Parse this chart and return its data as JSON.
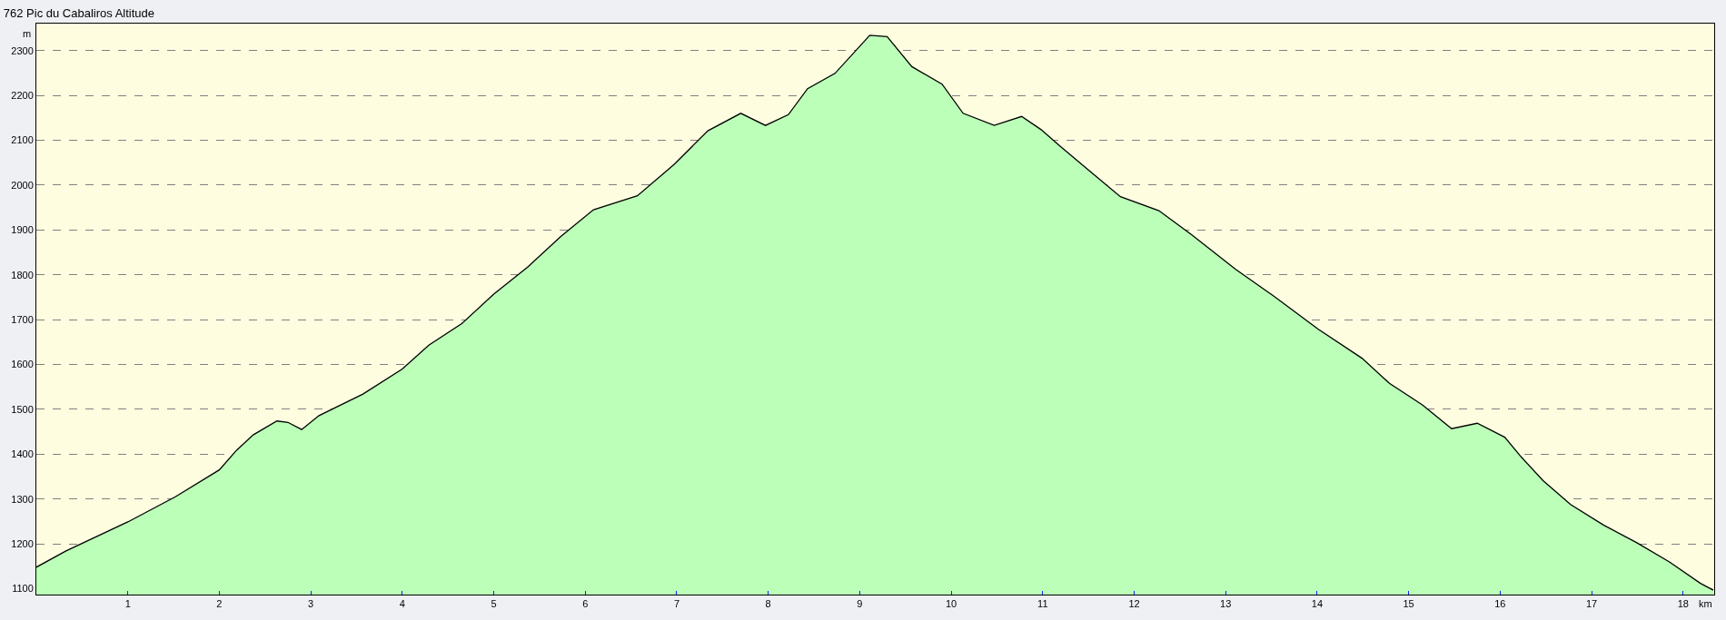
{
  "chart_data": {
    "type": "area",
    "title": "762 Pic du Cabaliros Altitude",
    "xlabel": "km",
    "ylabel": "m",
    "x": [
      0,
      0.32,
      1.0,
      1.52,
      2.0,
      2.19,
      2.37,
      2.63,
      2.75,
      2.9,
      3.09,
      3.57,
      4.0,
      4.29,
      4.65,
      5.0,
      5.37,
      5.73,
      6.09,
      6.57,
      6.97,
      7.34,
      7.7,
      7.97,
      8.22,
      8.43,
      8.73,
      9.11,
      9.3,
      9.57,
      9.9,
      10.13,
      10.47,
      10.77,
      10.98,
      11.19,
      11.55,
      11.85,
      12.27,
      12.63,
      13.11,
      13.53,
      14.01,
      14.49,
      14.79,
      15.15,
      15.47,
      15.75,
      16.05,
      16.23,
      16.47,
      16.77,
      17.13,
      17.49,
      17.85,
      18.19,
      18.33
    ],
    "series": [
      {
        "color": "#bbffb8",
        "values": [
          1148,
          1184,
          1249,
          1305,
          1365,
          1409,
          1443,
          1474,
          1471,
          1455,
          1486,
          1534,
          1590,
          1643,
          1691,
          1757,
          1817,
          1885,
          1945,
          1976,
          2046,
          2121,
          2160,
          2133,
          2157,
          2215,
          2249,
          2334,
          2331,
          2264,
          2225,
          2160,
          2133,
          2153,
          2124,
          2087,
          2025,
          1974,
          1943,
          1889,
          1812,
          1752,
          1679,
          1614,
          1558,
          1510,
          1457,
          1469,
          1438,
          1394,
          1341,
          1288,
          1242,
          1203,
          1160,
          1112,
          1097
        ]
      }
    ],
    "xlim": [
      0,
      18.34
    ],
    "ylim": [
      1087,
      2360
    ],
    "xticks": [
      1,
      2,
      3,
      4,
      5,
      6,
      7,
      8,
      9,
      10,
      11,
      12,
      13,
      14,
      15,
      16,
      17,
      18
    ],
    "yticks": [
      1100,
      1200,
      1300,
      1400,
      1500,
      1600,
      1700,
      1800,
      1900,
      2000,
      2100,
      2200,
      2300
    ],
    "grid": "y"
  }
}
